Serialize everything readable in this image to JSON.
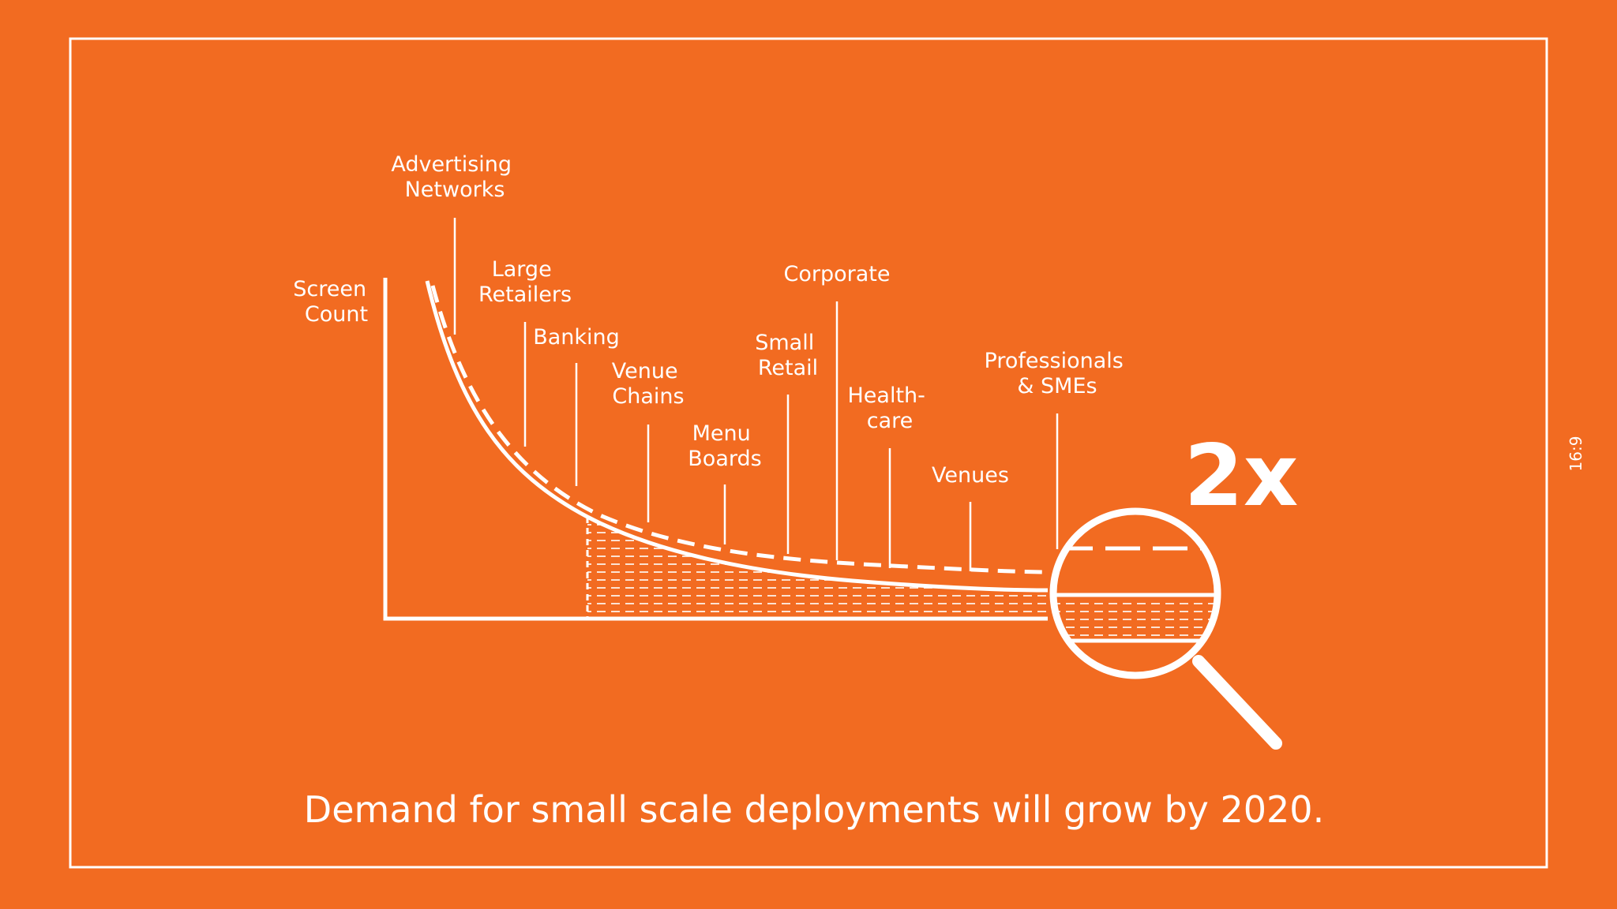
{
  "diagram": {
    "y_axis_label": [
      "Screen",
      "Count"
    ],
    "segments": [
      {
        "id": "advertising-networks",
        "lines": [
          "Advertising",
          "Networks"
        ]
      },
      {
        "id": "large-retailers",
        "lines": [
          "Large",
          "Retailers"
        ]
      },
      {
        "id": "banking",
        "lines": [
          "Banking"
        ]
      },
      {
        "id": "venue-chains",
        "lines": [
          "Venue",
          "Chains"
        ]
      },
      {
        "id": "menu-boards",
        "lines": [
          "Menu",
          "Boards"
        ]
      },
      {
        "id": "small-retail",
        "lines": [
          "Small",
          "Retail"
        ]
      },
      {
        "id": "corporate",
        "lines": [
          "Corporate"
        ]
      },
      {
        "id": "healthcare",
        "lines": [
          "Health-",
          "care"
        ]
      },
      {
        "id": "venues",
        "lines": [
          "Venues"
        ]
      },
      {
        "id": "professionals-smes",
        "lines": [
          "Professionals",
          "& SMEs"
        ]
      }
    ],
    "growth_label": "2x",
    "caption": "Demand for small scale deployments will grow by 2020.",
    "aspect_label": "16:9"
  },
  "colors": {
    "background": "#f26b21",
    "foreground": "#ffffff"
  }
}
